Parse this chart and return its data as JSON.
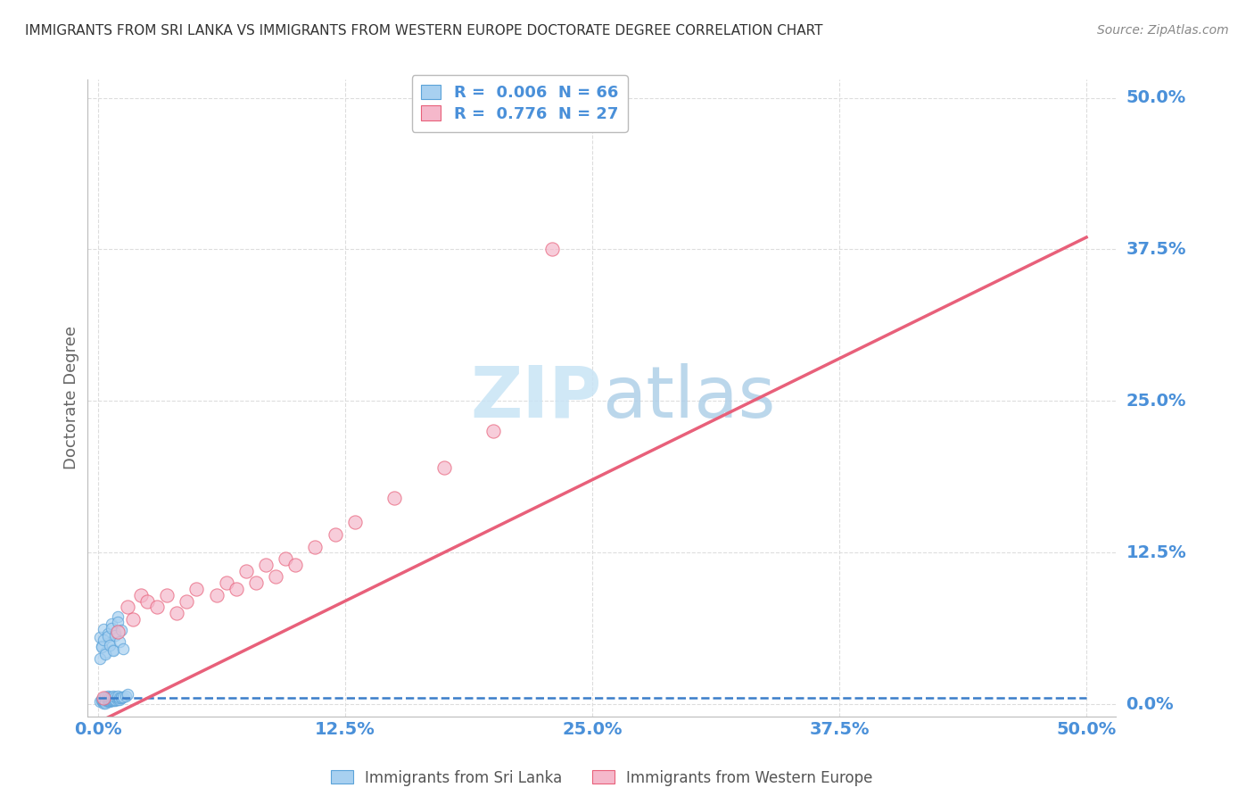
{
  "title": "IMMIGRANTS FROM SRI LANKA VS IMMIGRANTS FROM WESTERN EUROPE DOCTORATE DEGREE CORRELATION CHART",
  "source": "Source: ZipAtlas.com",
  "ylabel": "Doctorate Degree",
  "xlim": [
    -0.005,
    0.515
  ],
  "ylim": [
    -0.01,
    0.515
  ],
  "legend_blue_r": "R = ",
  "legend_blue_rv": "0.006",
  "legend_blue_n": "N = ",
  "legend_blue_nv": "66",
  "legend_pink_r": "R = ",
  "legend_pink_rv": "0.776",
  "legend_pink_n": "N = ",
  "legend_pink_nv": "27",
  "series1_label": "Immigrants from Sri Lanka",
  "series2_label": "Immigrants from Western Europe",
  "blue_color": "#a8d0f0",
  "blue_edge_color": "#5ba3d9",
  "pink_color": "#f5b8cb",
  "pink_edge_color": "#e8607a",
  "blue_line_color": "#3a7dc9",
  "pink_line_color": "#e8607a",
  "grid_color": "#dddddd",
  "tick_color": "#4a90d9",
  "title_color": "#333333",
  "source_color": "#888888",
  "ylabel_color": "#666666",
  "watermark_zip_color": "#c8e4f5",
  "watermark_atlas_color": "#b0d0e8",
  "blue_scatter_x": [
    0.001,
    0.002,
    0.002,
    0.003,
    0.003,
    0.003,
    0.003,
    0.004,
    0.004,
    0.004,
    0.004,
    0.004,
    0.005,
    0.005,
    0.005,
    0.005,
    0.005,
    0.006,
    0.006,
    0.006,
    0.006,
    0.006,
    0.007,
    0.007,
    0.007,
    0.007,
    0.008,
    0.008,
    0.008,
    0.008,
    0.009,
    0.009,
    0.009,
    0.01,
    0.01,
    0.01,
    0.011,
    0.011,
    0.012,
    0.012,
    0.013,
    0.014,
    0.015,
    0.001,
    0.002,
    0.003,
    0.004,
    0.005,
    0.006,
    0.007,
    0.008,
    0.009,
    0.01,
    0.001,
    0.002,
    0.003,
    0.004,
    0.005,
    0.006,
    0.007,
    0.008,
    0.009,
    0.01,
    0.011,
    0.012,
    0.013
  ],
  "blue_scatter_y": [
    0.002,
    0.003,
    0.004,
    0.001,
    0.002,
    0.003,
    0.005,
    0.002,
    0.003,
    0.004,
    0.006,
    0.001,
    0.002,
    0.003,
    0.004,
    0.005,
    0.007,
    0.002,
    0.003,
    0.004,
    0.005,
    0.006,
    0.003,
    0.004,
    0.005,
    0.006,
    0.003,
    0.004,
    0.005,
    0.007,
    0.003,
    0.004,
    0.006,
    0.004,
    0.005,
    0.007,
    0.004,
    0.005,
    0.005,
    0.006,
    0.006,
    0.007,
    0.008,
    0.055,
    0.048,
    0.062,
    0.043,
    0.058,
    0.051,
    0.066,
    0.045,
    0.059,
    0.072,
    0.038,
    0.047,
    0.053,
    0.041,
    0.056,
    0.049,
    0.063,
    0.044,
    0.057,
    0.068,
    0.052,
    0.061,
    0.046
  ],
  "pink_scatter_x": [
    0.003,
    0.01,
    0.015,
    0.018,
    0.022,
    0.025,
    0.03,
    0.035,
    0.04,
    0.045,
    0.05,
    0.06,
    0.065,
    0.07,
    0.075,
    0.08,
    0.085,
    0.09,
    0.095,
    0.1,
    0.11,
    0.12,
    0.13,
    0.15,
    0.175,
    0.2,
    0.23
  ],
  "pink_scatter_y": [
    0.005,
    0.06,
    0.08,
    0.07,
    0.09,
    0.085,
    0.08,
    0.09,
    0.075,
    0.085,
    0.095,
    0.09,
    0.1,
    0.095,
    0.11,
    0.1,
    0.115,
    0.105,
    0.12,
    0.115,
    0.13,
    0.14,
    0.15,
    0.17,
    0.195,
    0.225,
    0.375
  ],
  "blue_line_x": [
    0.0,
    0.5
  ],
  "blue_line_y": [
    0.005,
    0.005
  ],
  "pink_line_x": [
    0.0,
    0.5
  ],
  "pink_line_y": [
    -0.015,
    0.385
  ],
  "xtick_vals": [
    0.0,
    0.125,
    0.25,
    0.375,
    0.5
  ],
  "xtick_labels": [
    "0.0%",
    "12.5%",
    "25.0%",
    "37.5%",
    "50.0%"
  ],
  "ytick_vals": [
    0.0,
    0.125,
    0.25,
    0.375,
    0.5
  ],
  "ytick_labels": [
    "0.0%",
    "12.5%",
    "25.0%",
    "37.5%",
    "50.0%"
  ]
}
